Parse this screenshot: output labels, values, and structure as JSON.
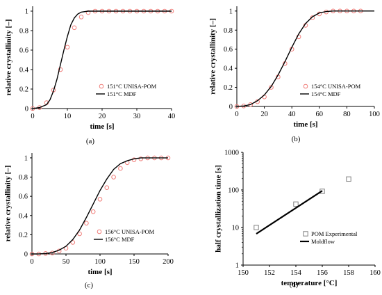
{
  "chart_data": [
    {
      "id": "a",
      "type": "scatter+line",
      "caption": "(a)",
      "xlabel": "time [s]",
      "ylabel": "relative crystallinity [–]",
      "xlim": [
        0,
        40
      ],
      "ylim": [
        0,
        1.05
      ],
      "xticks": [
        0,
        10,
        20,
        30,
        40
      ],
      "yticks": [
        0,
        0.2,
        0.4,
        0.6,
        0.8,
        1
      ],
      "series": [
        {
          "name": "151°C UNISA-POM",
          "kind": "marker",
          "x": [
            0,
            2,
            4,
            6,
            8,
            10,
            12,
            14,
            16,
            18,
            20,
            22,
            24,
            26,
            28,
            30,
            32,
            34,
            36,
            38,
            40
          ],
          "y": [
            0,
            0.01,
            0.06,
            0.19,
            0.4,
            0.63,
            0.83,
            0.94,
            0.985,
            1,
            1,
            1,
            1,
            1,
            1,
            1,
            1,
            1,
            1,
            1,
            1
          ]
        },
        {
          "name": "151°C MDF",
          "kind": "line",
          "x": [
            0,
            2,
            4,
            5,
            6,
            7,
            8,
            9,
            10,
            11,
            12,
            13,
            14,
            15,
            16,
            18,
            20,
            25,
            30,
            40
          ],
          "y": [
            0,
            0.01,
            0.04,
            0.09,
            0.18,
            0.3,
            0.45,
            0.6,
            0.74,
            0.86,
            0.93,
            0.97,
            0.99,
            0.995,
            1,
            1,
            1,
            1,
            1,
            1
          ]
        }
      ]
    },
    {
      "id": "b",
      "type": "scatter+line",
      "caption": "(b)",
      "xlabel": "time [s]",
      "ylabel": "relative crystallinity [–]",
      "xlim": [
        0,
        100
      ],
      "ylim": [
        0,
        1.05
      ],
      "xticks": [
        0,
        20,
        40,
        60,
        80,
        100
      ],
      "yticks": [
        0,
        0.2,
        0.4,
        0.6,
        0.8,
        1
      ],
      "series": [
        {
          "name": "154°C UNISA-POM",
          "kind": "marker",
          "x": [
            0,
            5,
            10,
            15,
            20,
            25,
            30,
            35,
            40,
            45,
            50,
            55,
            60,
            65,
            70,
            75,
            80,
            85,
            90
          ],
          "y": [
            0,
            0.005,
            0.02,
            0.05,
            0.1,
            0.2,
            0.31,
            0.45,
            0.6,
            0.73,
            0.85,
            0.93,
            0.97,
            0.99,
            1,
            1,
            1,
            1,
            1
          ]
        },
        {
          "name": "154°C MDF",
          "kind": "line",
          "x": [
            0,
            5,
            10,
            15,
            20,
            25,
            30,
            35,
            40,
            45,
            50,
            55,
            60,
            65,
            70,
            80,
            90,
            100
          ],
          "y": [
            0,
            0.005,
            0.02,
            0.06,
            0.12,
            0.21,
            0.33,
            0.47,
            0.62,
            0.76,
            0.87,
            0.94,
            0.98,
            0.995,
            1,
            1,
            1,
            1
          ]
        }
      ]
    },
    {
      "id": "c",
      "type": "scatter+line",
      "caption": "(c)",
      "xlabel": "time [s]",
      "ylabel": "relative crystallinity [–]",
      "xlim": [
        0,
        200
      ],
      "ylim": [
        0,
        1.05
      ],
      "xticks": [
        0,
        50,
        100,
        150,
        200
      ],
      "yticks": [
        0,
        0.2,
        0.4,
        0.6,
        0.8,
        1
      ],
      "series": [
        {
          "name": "156°C UNISA-POM",
          "kind": "marker",
          "x": [
            0,
            10,
            20,
            30,
            40,
            50,
            60,
            70,
            80,
            90,
            100,
            110,
            120,
            130,
            140,
            150,
            160,
            170,
            180,
            190,
            200
          ],
          "y": [
            0,
            0,
            0.005,
            0.01,
            0.03,
            0.06,
            0.12,
            0.21,
            0.32,
            0.44,
            0.57,
            0.69,
            0.8,
            0.89,
            0.95,
            0.98,
            0.99,
            1,
            1,
            1,
            1
          ]
        },
        {
          "name": "156°C MDF",
          "kind": "line",
          "x": [
            0,
            10,
            20,
            30,
            40,
            50,
            60,
            70,
            80,
            90,
            100,
            110,
            120,
            130,
            140,
            150,
            160,
            170,
            180,
            200
          ],
          "y": [
            0,
            0,
            0.005,
            0.015,
            0.04,
            0.08,
            0.15,
            0.25,
            0.38,
            0.52,
            0.66,
            0.78,
            0.88,
            0.94,
            0.97,
            0.99,
            1,
            1,
            1,
            1
          ]
        }
      ]
    },
    {
      "id": "d",
      "type": "scatter+line",
      "caption": "(d)",
      "xlabel": "temperature [°C]",
      "ylabel": "half crystallization time [s]",
      "xlim": [
        150,
        160
      ],
      "ylim": [
        1,
        1000
      ],
      "yscale": "log",
      "xticks": [
        150,
        152,
        154,
        156,
        158,
        160
      ],
      "yticks": [
        1,
        10,
        100,
        1000
      ],
      "series": [
        {
          "name": "POM Experimental",
          "kind": "square-marker",
          "x": [
            151,
            154,
            156,
            158
          ],
          "y": [
            10,
            42,
            92,
            195
          ]
        },
        {
          "name": "Moldflow",
          "kind": "line",
          "x": [
            151,
            156
          ],
          "y": [
            6.8,
            95
          ]
        }
      ]
    }
  ],
  "colors": {
    "marker": "#f07f7b",
    "line": "#000000",
    "square": "#7f7f7f",
    "axis": "#000000"
  }
}
